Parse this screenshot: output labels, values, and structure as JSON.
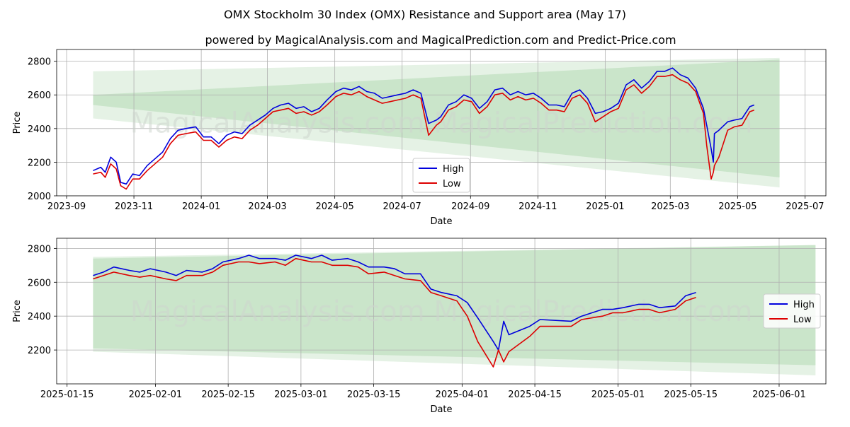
{
  "title": "OMX Stockholm 30 Index (OMX) Resistance and Support area (May 17)",
  "subtitle": "powered by MagicalAnalysis.com and MagicalPrediction.com and Predict-Price.com",
  "watermark": "MagicalAnalysis.com    MagicalPrediction.com",
  "colors": {
    "high": "#0000dd",
    "low": "#dd0000",
    "band": "#a8d5a8",
    "grid": "#b0b0b0"
  },
  "chart_data": [
    {
      "type": "line",
      "xlabel": "Date",
      "ylabel": "Price",
      "ylim": [
        2000,
        2870
      ],
      "yticks": [
        2000,
        2200,
        2400,
        2600,
        2800
      ],
      "xticks": [
        "2023-09",
        "2023-11",
        "2024-01",
        "2024-03",
        "2024-05",
        "2024-07",
        "2024-09",
        "2024-11",
        "2025-01",
        "2025-03",
        "2025-05",
        "2025-07"
      ],
      "xlim": [
        "2023-08-23",
        "2025-07-20"
      ],
      "grid": true,
      "legend": "center",
      "series": [
        {
          "name": "High",
          "color": "#0000dd",
          "x": [
            "2023-09-25",
            "2023-10-02",
            "2023-10-06",
            "2023-10-11",
            "2023-10-16",
            "2023-10-20",
            "2023-10-25",
            "2023-10-31",
            "2023-11-06",
            "2023-11-13",
            "2023-11-20",
            "2023-11-27",
            "2023-12-04",
            "2023-12-11",
            "2023-12-18",
            "2023-12-27",
            "2024-01-03",
            "2024-01-10",
            "2024-01-17",
            "2024-01-24",
            "2024-01-31",
            "2024-02-07",
            "2024-02-14",
            "2024-02-21",
            "2024-02-28",
            "2024-03-06",
            "2024-03-13",
            "2024-03-20",
            "2024-03-27",
            "2024-04-03",
            "2024-04-10",
            "2024-04-17",
            "2024-04-24",
            "2024-05-02",
            "2024-05-09",
            "2024-05-16",
            "2024-05-23",
            "2024-05-30",
            "2024-06-06",
            "2024-06-13",
            "2024-06-20",
            "2024-06-27",
            "2024-07-04",
            "2024-07-11",
            "2024-07-18",
            "2024-07-25",
            "2024-08-01",
            "2024-08-05",
            "2024-08-12",
            "2024-08-19",
            "2024-08-26",
            "2024-09-02",
            "2024-09-09",
            "2024-09-16",
            "2024-09-23",
            "2024-09-30",
            "2024-10-07",
            "2024-10-14",
            "2024-10-21",
            "2024-10-28",
            "2024-11-04",
            "2024-11-11",
            "2024-11-18",
            "2024-11-25",
            "2024-12-02",
            "2024-12-09",
            "2024-12-16",
            "2024-12-23",
            "2024-12-30",
            "2025-01-06",
            "2025-01-13",
            "2025-01-20",
            "2025-01-27",
            "2025-02-03",
            "2025-02-10",
            "2025-02-17",
            "2025-02-24",
            "2025-03-03",
            "2025-03-10",
            "2025-03-17",
            "2025-03-24",
            "2025-03-31",
            "2025-04-03",
            "2025-04-07",
            "2025-04-09",
            "2025-04-10",
            "2025-04-14",
            "2025-04-22",
            "2025-04-28",
            "2025-05-05",
            "2025-05-12",
            "2025-05-16"
          ],
          "values": [
            2150,
            2170,
            2140,
            2230,
            2200,
            2080,
            2070,
            2130,
            2120,
            2180,
            2220,
            2260,
            2340,
            2390,
            2400,
            2410,
            2350,
            2350,
            2310,
            2360,
            2380,
            2370,
            2420,
            2450,
            2480,
            2520,
            2540,
            2550,
            2520,
            2530,
            2500,
            2520,
            2570,
            2620,
            2640,
            2630,
            2650,
            2620,
            2610,
            2580,
            2590,
            2600,
            2610,
            2630,
            2610,
            2430,
            2450,
            2470,
            2540,
            2560,
            2600,
            2580,
            2520,
            2560,
            2630,
            2640,
            2600,
            2620,
            2600,
            2610,
            2580,
            2540,
            2540,
            2530,
            2610,
            2630,
            2580,
            2490,
            2500,
            2520,
            2550,
            2660,
            2690,
            2640,
            2680,
            2740,
            2740,
            2760,
            2720,
            2700,
            2640,
            2520,
            2420,
            2280,
            2200,
            2370,
            2390,
            2440,
            2450,
            2460,
            2530,
            2540
          ]
        },
        {
          "name": "Low",
          "color": "#dd0000",
          "x": [
            "2023-09-25",
            "2023-10-02",
            "2023-10-06",
            "2023-10-11",
            "2023-10-16",
            "2023-10-20",
            "2023-10-25",
            "2023-10-31",
            "2023-11-06",
            "2023-11-13",
            "2023-11-20",
            "2023-11-27",
            "2023-12-04",
            "2023-12-11",
            "2023-12-18",
            "2023-12-27",
            "2024-01-03",
            "2024-01-10",
            "2024-01-17",
            "2024-01-24",
            "2024-01-31",
            "2024-02-07",
            "2024-02-14",
            "2024-02-21",
            "2024-02-28",
            "2024-03-06",
            "2024-03-13",
            "2024-03-20",
            "2024-03-27",
            "2024-04-03",
            "2024-04-10",
            "2024-04-17",
            "2024-04-24",
            "2024-05-02",
            "2024-05-09",
            "2024-05-16",
            "2024-05-23",
            "2024-05-30",
            "2024-06-06",
            "2024-06-13",
            "2024-06-20",
            "2024-06-27",
            "2024-07-04",
            "2024-07-11",
            "2024-07-18",
            "2024-07-25",
            "2024-08-01",
            "2024-08-05",
            "2024-08-12",
            "2024-08-19",
            "2024-08-26",
            "2024-09-02",
            "2024-09-09",
            "2024-09-16",
            "2024-09-23",
            "2024-09-30",
            "2024-10-07",
            "2024-10-14",
            "2024-10-21",
            "2024-10-28",
            "2024-11-04",
            "2024-11-11",
            "2024-11-18",
            "2024-11-25",
            "2024-12-02",
            "2024-12-09",
            "2024-12-16",
            "2024-12-23",
            "2024-12-30",
            "2025-01-06",
            "2025-01-13",
            "2025-01-20",
            "2025-01-27",
            "2025-02-03",
            "2025-02-10",
            "2025-02-17",
            "2025-02-24",
            "2025-03-03",
            "2025-03-10",
            "2025-03-17",
            "2025-03-24",
            "2025-03-31",
            "2025-04-03",
            "2025-04-07",
            "2025-04-09",
            "2025-04-10",
            "2025-04-14",
            "2025-04-22",
            "2025-04-28",
            "2025-05-05",
            "2025-05-12",
            "2025-05-16"
          ],
          "values": [
            2130,
            2140,
            2110,
            2190,
            2160,
            2060,
            2040,
            2100,
            2100,
            2150,
            2190,
            2230,
            2310,
            2360,
            2370,
            2380,
            2330,
            2330,
            2290,
            2330,
            2350,
            2340,
            2390,
            2420,
            2460,
            2500,
            2510,
            2520,
            2490,
            2500,
            2480,
            2500,
            2540,
            2590,
            2610,
            2600,
            2620,
            2590,
            2570,
            2550,
            2560,
            2570,
            2580,
            2600,
            2580,
            2360,
            2420,
            2440,
            2510,
            2530,
            2570,
            2560,
            2490,
            2530,
            2600,
            2610,
            2570,
            2590,
            2570,
            2580,
            2550,
            2510,
            2510,
            2500,
            2580,
            2600,
            2550,
            2440,
            2470,
            2500,
            2520,
            2630,
            2660,
            2610,
            2650,
            2710,
            2710,
            2720,
            2690,
            2670,
            2620,
            2490,
            2300,
            2100,
            2140,
            2180,
            2230,
            2390,
            2410,
            2420,
            2500,
            2510
          ]
        }
      ],
      "band": {
        "x_start": "2023-09-25",
        "x_end": "2025-06-08",
        "outer_upper": [
          2740,
          2820
        ],
        "outer_lower": [
          2460,
          2050
        ],
        "inner_upper": [
          2600,
          2810
        ],
        "inner_lower": [
          2540,
          2110
        ]
      }
    },
    {
      "type": "line",
      "xlabel": "Date",
      "ylabel": "Price",
      "ylim": [
        2000,
        2860
      ],
      "yticks": [
        2200,
        2400,
        2600,
        2800
      ],
      "xticks": [
        "2025-01-15",
        "2025-02-01",
        "2025-02-15",
        "2025-03-01",
        "2025-03-15",
        "2025-04-01",
        "2025-04-15",
        "2025-05-01",
        "2025-05-15",
        "2025-06-01"
      ],
      "xlim": [
        "2025-01-13",
        "2025-06-10"
      ],
      "grid": true,
      "legend": "center-right",
      "series": [
        {
          "name": "High",
          "color": "#0000dd",
          "x": [
            "2025-01-20",
            "2025-01-22",
            "2025-01-24",
            "2025-01-27",
            "2025-01-29",
            "2025-01-31",
            "2025-02-03",
            "2025-02-05",
            "2025-02-07",
            "2025-02-10",
            "2025-02-12",
            "2025-02-14",
            "2025-02-17",
            "2025-02-19",
            "2025-02-21",
            "2025-02-24",
            "2025-02-26",
            "2025-02-28",
            "2025-03-03",
            "2025-03-05",
            "2025-03-07",
            "2025-03-10",
            "2025-03-12",
            "2025-03-14",
            "2025-03-17",
            "2025-03-19",
            "2025-03-21",
            "2025-03-24",
            "2025-03-26",
            "2025-03-28",
            "2025-03-31",
            "2025-04-02",
            "2025-04-04",
            "2025-04-07",
            "2025-04-08",
            "2025-04-09",
            "2025-04-10",
            "2025-04-14",
            "2025-04-16",
            "2025-04-22",
            "2025-04-24",
            "2025-04-28",
            "2025-04-30",
            "2025-05-02",
            "2025-05-05",
            "2025-05-07",
            "2025-05-09",
            "2025-05-12",
            "2025-05-14",
            "2025-05-16"
          ],
          "values": [
            2640,
            2660,
            2690,
            2670,
            2660,
            2680,
            2660,
            2640,
            2670,
            2660,
            2680,
            2720,
            2740,
            2760,
            2740,
            2740,
            2730,
            2760,
            2740,
            2760,
            2730,
            2740,
            2720,
            2690,
            2690,
            2680,
            2650,
            2650,
            2560,
            2540,
            2520,
            2480,
            2390,
            2250,
            2200,
            2370,
            2290,
            2340,
            2380,
            2370,
            2400,
            2440,
            2440,
            2450,
            2470,
            2470,
            2450,
            2460,
            2520,
            2540
          ]
        },
        {
          "name": "Low",
          "color": "#dd0000",
          "x": [
            "2025-01-20",
            "2025-01-22",
            "2025-01-24",
            "2025-01-27",
            "2025-01-29",
            "2025-01-31",
            "2025-02-03",
            "2025-02-05",
            "2025-02-07",
            "2025-02-10",
            "2025-02-12",
            "2025-02-14",
            "2025-02-17",
            "2025-02-19",
            "2025-02-21",
            "2025-02-24",
            "2025-02-26",
            "2025-02-28",
            "2025-03-03",
            "2025-03-05",
            "2025-03-07",
            "2025-03-10",
            "2025-03-12",
            "2025-03-14",
            "2025-03-17",
            "2025-03-19",
            "2025-03-21",
            "2025-03-24",
            "2025-03-26",
            "2025-03-28",
            "2025-03-31",
            "2025-04-02",
            "2025-04-04",
            "2025-04-07",
            "2025-04-08",
            "2025-04-09",
            "2025-04-10",
            "2025-04-14",
            "2025-04-16",
            "2025-04-22",
            "2025-04-24",
            "2025-04-28",
            "2025-04-30",
            "2025-05-02",
            "2025-05-05",
            "2025-05-07",
            "2025-05-09",
            "2025-05-12",
            "2025-05-14",
            "2025-05-16"
          ],
          "values": [
            2620,
            2640,
            2660,
            2640,
            2630,
            2640,
            2620,
            2610,
            2640,
            2640,
            2660,
            2700,
            2720,
            2720,
            2710,
            2720,
            2700,
            2740,
            2720,
            2720,
            2700,
            2700,
            2690,
            2650,
            2660,
            2640,
            2620,
            2610,
            2540,
            2520,
            2490,
            2400,
            2250,
            2100,
            2200,
            2130,
            2190,
            2280,
            2340,
            2340,
            2380,
            2400,
            2420,
            2420,
            2440,
            2440,
            2420,
            2440,
            2490,
            2510
          ]
        }
      ],
      "band": {
        "x_start": "2025-01-20",
        "x_end": "2025-06-08",
        "outer_upper": [
          2750,
          2820
        ],
        "outer_lower": [
          2190,
          2050
        ],
        "inner_upper": [
          2740,
          2820
        ],
        "inner_lower": [
          2210,
          2110
        ]
      }
    }
  ]
}
